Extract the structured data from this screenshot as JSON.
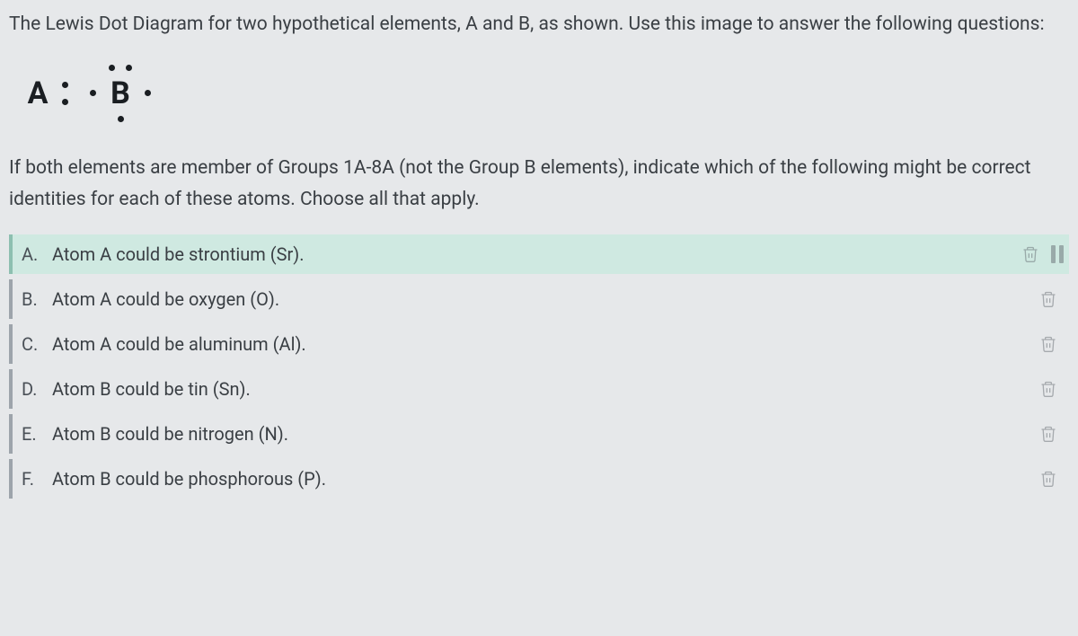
{
  "question": {
    "intro_text": "The Lewis Dot Diagram for two hypothetical elements, A and B, as shown. Use this image to answer the following questions:",
    "body_text": "If both elements are member of Groups 1A-8A (not the Group B elements), indicate which of the following might be correct identities for each of these atoms. Choose all that apply."
  },
  "lewis_diagram": {
    "atom_a": {
      "symbol": "A",
      "valence_electrons": 2,
      "dot_positions": [
        "right-top",
        "right-bottom"
      ]
    },
    "atom_b": {
      "symbol": "B",
      "valence_electrons": 5,
      "dot_positions": [
        "top-left",
        "top-right",
        "left",
        "right",
        "bottom"
      ]
    }
  },
  "answers": {
    "options": [
      {
        "letter": "A.",
        "text": "Atom A could be strontium (Sr).",
        "highlighted": true,
        "show_pause": true
      },
      {
        "letter": "B.",
        "text": "Atom A could be oxygen (O).",
        "highlighted": false,
        "show_pause": false
      },
      {
        "letter": "C.",
        "text": "Atom A could be aluminum (Al).",
        "highlighted": false,
        "show_pause": false
      },
      {
        "letter": "D.",
        "text": "Atom B could be tin (Sn).",
        "highlighted": false,
        "show_pause": false
      },
      {
        "letter": "E.",
        "text": "Atom B could be nitrogen (N).",
        "highlighted": false,
        "show_pause": false
      },
      {
        "letter": "F.",
        "text": "Atom B could be phosphorous (P).",
        "highlighted": false,
        "show_pause": false
      }
    ]
  },
  "colors": {
    "background": "#e6e8ea",
    "text_primary": "#3a3f44",
    "text_dark": "#1a1e22",
    "highlight_bg": "#cfe9e1",
    "highlight_border": "#8dbfb0",
    "normal_border": "#9da4ab",
    "icon_color": "#5a6067"
  },
  "typography": {
    "question_fontsize": 21,
    "answer_fontsize": 20,
    "atom_fontsize": 34
  }
}
